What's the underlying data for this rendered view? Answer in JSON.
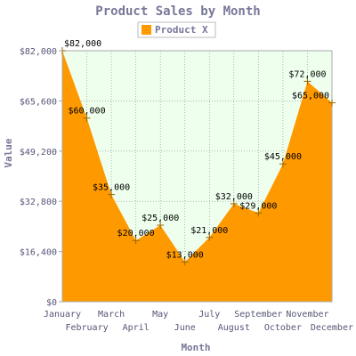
{
  "chart_data": {
    "type": "area",
    "title": "Product Sales by Month",
    "xlabel": "Month",
    "ylabel": "Value",
    "categories": [
      "January",
      "February",
      "March",
      "April",
      "May",
      "June",
      "July",
      "August",
      "September",
      "October",
      "November",
      "December"
    ],
    "series": [
      {
        "name": "Product X",
        "values": [
          82000,
          60000,
          35000,
          20000,
          25000,
          13000,
          21000,
          32000,
          29000,
          45000,
          72000,
          65000
        ],
        "value_labels": [
          "$82,000",
          "$60,000",
          "$35,000",
          "$20,000",
          "$25,000",
          "$13,000",
          "$21,000",
          "$32,000",
          "$29,000",
          "$45,000",
          "$72,000",
          "$65,000"
        ],
        "color": "#ff9900"
      }
    ],
    "y_ticks": [
      "$0",
      "$16,400",
      "$32,800",
      "$49,200",
      "$65,600",
      "$82,000"
    ],
    "y_tick_values": [
      0,
      16400,
      32800,
      49200,
      65600,
      82000
    ],
    "ylim": [
      0,
      82000
    ],
    "grid": true,
    "legend": "top-center",
    "plot_background": "#eeffee",
    "title_color": "#777799",
    "axis_label_color": "#777799",
    "tick_label_color": "#555577",
    "value_label_color": "#000000"
  }
}
